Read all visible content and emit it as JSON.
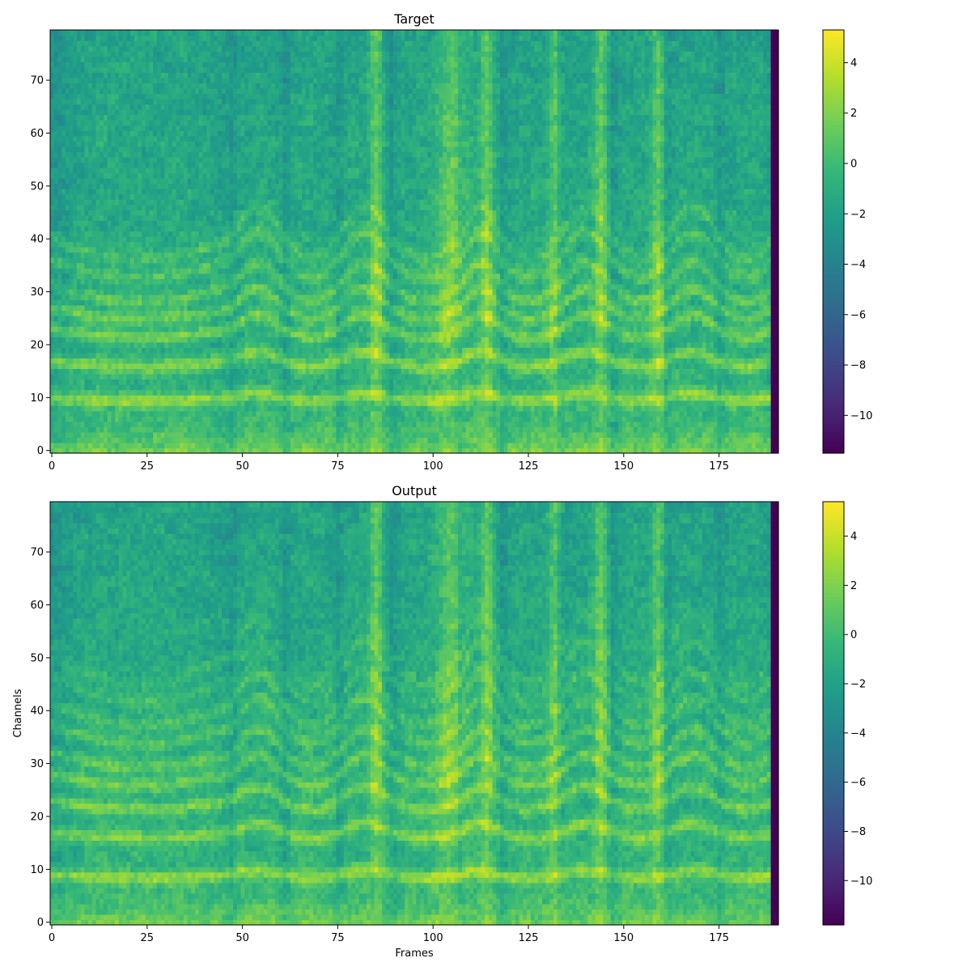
{
  "chart_data": [
    {
      "type": "heatmap",
      "title": "Target",
      "xlabel": "",
      "ylabel": "",
      "xlim": [
        0,
        191
      ],
      "ylim": [
        0,
        80
      ],
      "x_ticks": [
        0,
        25,
        50,
        75,
        100,
        125,
        150,
        175
      ],
      "y_ticks": [
        0,
        10,
        20,
        30,
        40,
        50,
        60,
        70
      ],
      "colormap": "viridis",
      "colorbar": {
        "min": -11.5,
        "max": 5.3,
        "ticks": [
          4,
          2,
          0,
          -2,
          -4,
          -6,
          -8,
          -10
        ],
        "tick_labels": [
          "4",
          "2",
          "0",
          "−2",
          "−4",
          "−6",
          "−8",
          "−10"
        ]
      },
      "padding_start_frame": 189,
      "padding_value": -11.5,
      "harmonic_bands": [
        10,
        17,
        23,
        27,
        31,
        36,
        40
      ],
      "bright_columns": [
        85,
        105,
        114,
        132,
        144,
        159
      ],
      "segment_boundaries": [
        0,
        47,
        61,
        75,
        89,
        107,
        118,
        133,
        147,
        161,
        175,
        189
      ]
    },
    {
      "type": "heatmap",
      "title": "Output",
      "xlabel": "Frames",
      "ylabel": "Channels",
      "xlim": [
        0,
        191
      ],
      "ylim": [
        0,
        80
      ],
      "x_ticks": [
        0,
        25,
        50,
        75,
        100,
        125,
        150,
        175
      ],
      "y_ticks": [
        0,
        10,
        20,
        30,
        40,
        50,
        60,
        70
      ],
      "colormap": "viridis",
      "colorbar": {
        "min": -11.8,
        "max": 5.4,
        "ticks": [
          4,
          2,
          0,
          -2,
          -4,
          -6,
          -8,
          -10
        ],
        "tick_labels": [
          "4",
          "2",
          "0",
          "−2",
          "−4",
          "−6",
          "−8",
          "−10"
        ]
      },
      "padding_start_frame": 189,
      "padding_value": -11.8,
      "harmonic_bands": [
        9,
        17,
        23,
        28,
        32,
        37,
        41,
        46,
        50
      ],
      "bright_columns": [
        85,
        105,
        114,
        132,
        144,
        159
      ],
      "segment_boundaries": [
        0,
        47,
        61,
        75,
        89,
        107,
        118,
        133,
        147,
        161,
        175,
        189
      ]
    }
  ]
}
